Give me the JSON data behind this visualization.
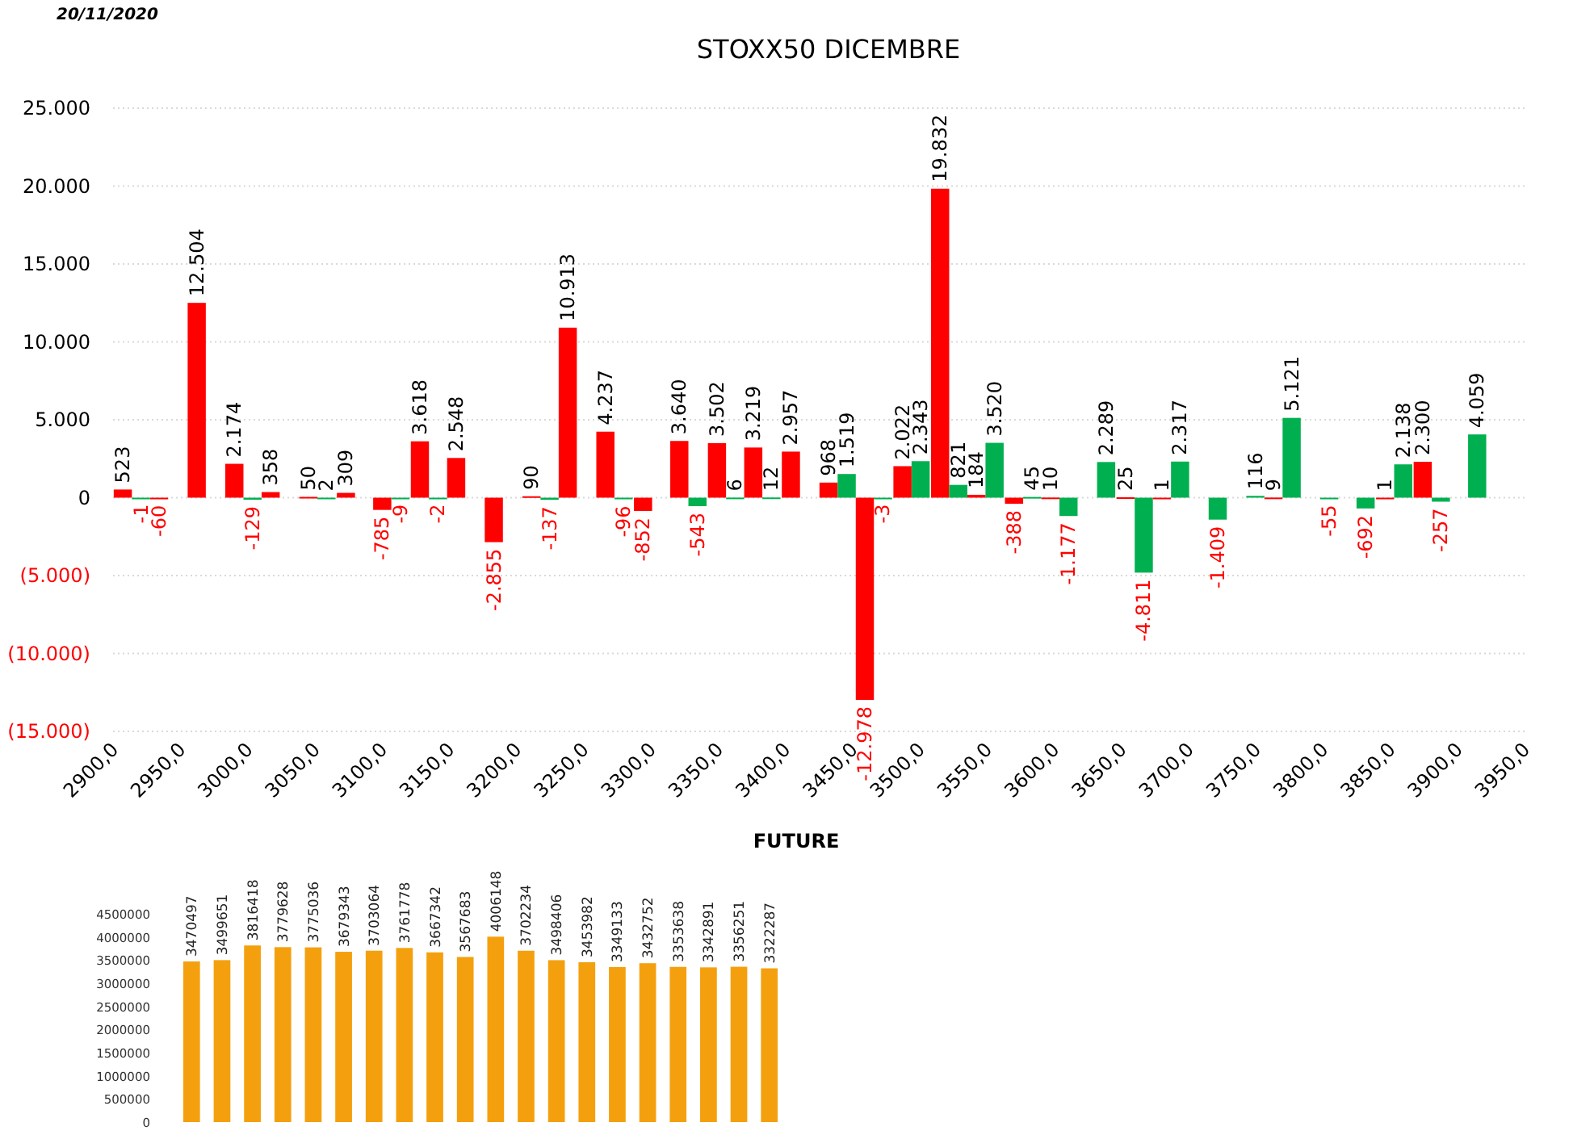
{
  "chart_data": [
    {
      "type": "bar",
      "title": "STOXX50 DICEMBRE",
      "annotations": [
        "20/11/2020"
      ],
      "x": [
        2914,
        2941,
        2969,
        2997,
        3024,
        3052,
        3080,
        3107,
        3135,
        3162,
        3190,
        3218,
        3245,
        3273,
        3301,
        3328,
        3356,
        3383,
        3411,
        3439,
        3466,
        3494,
        3522,
        3549,
        3577,
        3604,
        3632,
        3660,
        3687,
        3715,
        3743,
        3770,
        3798,
        3825,
        3853,
        3881,
        3908
      ],
      "series": [
        {
          "color": "#ff0000",
          "values": [
            523,
            -60,
            12504,
            2174,
            358,
            50,
            309,
            -785,
            3618,
            2548,
            -2855,
            90,
            10913,
            4237,
            -852,
            3640,
            3502,
            3219,
            2957,
            968,
            -12978,
            2022,
            19832,
            184,
            -388,
            10,
            null,
            25,
            1,
            null,
            null,
            9,
            null,
            null,
            1,
            2300,
            null
          ],
          "value_labels": [
            "523",
            "-60",
            "12.504",
            "2.174",
            "358",
            "50",
            "309",
            "-785",
            "3.618",
            "2.548",
            "-2.855",
            "90",
            "10.913",
            "4.237",
            "-852",
            "3.640",
            "3.502",
            "3.219",
            "2.957",
            "968",
            "-12.978",
            "2.022",
            "19.832",
            "184",
            "-388",
            "10",
            null,
            "25",
            "1",
            null,
            null,
            "9",
            null,
            null,
            "1",
            "2.300",
            null
          ]
        },
        {
          "color": "#00b050",
          "values": [
            -1,
            null,
            null,
            -129,
            null,
            2,
            null,
            -9,
            -2,
            null,
            null,
            -137,
            null,
            -96,
            null,
            -543,
            6,
            12,
            null,
            1519,
            -3,
            2343,
            821,
            3520,
            45,
            -1177,
            2289,
            -4811,
            2317,
            -1409,
            116,
            5121,
            -55,
            -692,
            2138,
            -257,
            4059
          ],
          "value_labels": [
            "-1",
            null,
            null,
            "-129",
            null,
            "2",
            null,
            "-9",
            "-2",
            null,
            null,
            "-137",
            null,
            "-96",
            null,
            "-543",
            "6",
            "12",
            null,
            "1.519",
            "-3",
            "2.343",
            "821",
            "3.520",
            "45",
            "-1.177",
            "2.289",
            "-4.811",
            "2.317",
            "-1.409",
            "116",
            "5.121",
            "-55",
            "-692",
            "2.138",
            "-257",
            "4.059"
          ]
        }
      ],
      "xlim": [
        2900,
        3950
      ],
      "xticks": [
        {
          "value": 2900,
          "label": "2900,0"
        },
        {
          "value": 2950,
          "label": "2950,0"
        },
        {
          "value": 3000,
          "label": "3000,0"
        },
        {
          "value": 3050,
          "label": "3050,0"
        },
        {
          "value": 3100,
          "label": "3100,0"
        },
        {
          "value": 3150,
          "label": "3150,0"
        },
        {
          "value": 3200,
          "label": "3200,0"
        },
        {
          "value": 3250,
          "label": "3250,0"
        },
        {
          "value": 3300,
          "label": "3300,0"
        },
        {
          "value": 3350,
          "label": "3350,0"
        },
        {
          "value": 3400,
          "label": "3400,0"
        },
        {
          "value": 3450,
          "label": "3450,0"
        },
        {
          "value": 3500,
          "label": "3500,0"
        },
        {
          "value": 3550,
          "label": "3550,0"
        },
        {
          "value": 3600,
          "label": "3600,0"
        },
        {
          "value": 3650,
          "label": "3650,0"
        },
        {
          "value": 3700,
          "label": "3700,0"
        },
        {
          "value": 3750,
          "label": "3750,0"
        },
        {
          "value": 3800,
          "label": "3800,0"
        },
        {
          "value": 3850,
          "label": "3850,0"
        },
        {
          "value": 3900,
          "label": "3900,0"
        },
        {
          "value": 3950,
          "label": "3950,0"
        }
      ],
      "ylim": [
        -15000,
        25000
      ],
      "yticks": [
        {
          "value": -15000,
          "label": "(15.000)"
        },
        {
          "value": -10000,
          "label": "(10.000)"
        },
        {
          "value": -5000,
          "label": "(5.000)"
        },
        {
          "value": 0,
          "label": "0"
        },
        {
          "value": 5000,
          "label": "5.000"
        },
        {
          "value": 10000,
          "label": "10.000"
        },
        {
          "value": 15000,
          "label": "15.000"
        },
        {
          "value": 20000,
          "label": "20.000"
        },
        {
          "value": 25000,
          "label": "25.000"
        }
      ],
      "grid": "y"
    },
    {
      "type": "bar",
      "title": "FUTURE",
      "color": "#f4a00e",
      "data_labels": true,
      "categories": [
        null,
        null,
        null,
        null,
        null,
        null,
        null,
        null,
        null,
        null,
        null,
        null,
        null,
        null,
        null,
        null,
        null,
        null,
        null,
        null
      ],
      "values": [
        3470497,
        3499651,
        3816418,
        3779628,
        3775036,
        3679343,
        3703064,
        3761778,
        3667342,
        3567683,
        4006148,
        3702234,
        3498406,
        3453982,
        3349133,
        3432752,
        3353638,
        3342891,
        3356251,
        3322287
      ],
      "ylim": [
        0,
        4500000
      ],
      "yticks": [
        0,
        500000,
        1000000,
        1500000,
        2000000,
        2500000,
        3000000,
        3500000,
        4000000,
        4500000
      ],
      "tick_labels": "y"
    }
  ]
}
